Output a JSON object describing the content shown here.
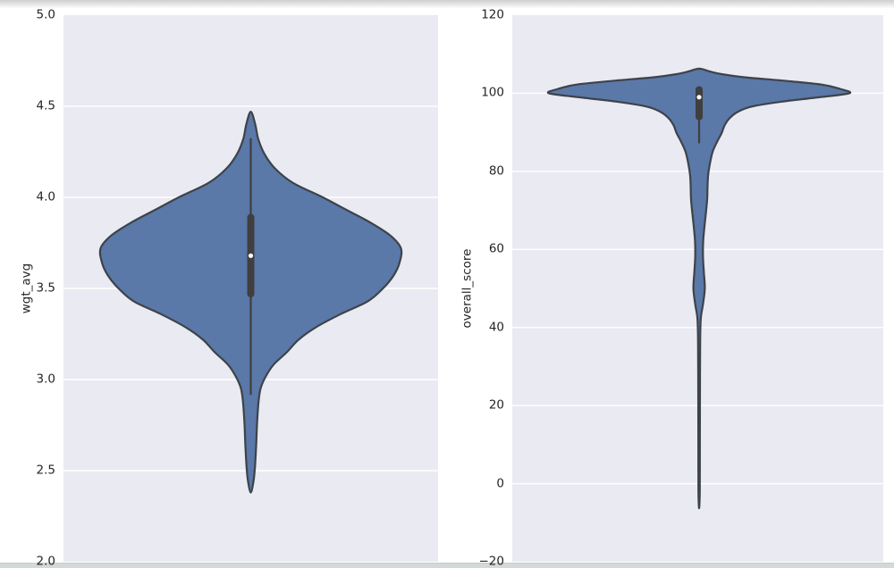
{
  "page": {
    "background": "#ffffff",
    "top_strip_color": "#cfcfcf",
    "bottom_strip_color": "#d3d8d8"
  },
  "chart_data": [
    {
      "type": "violin",
      "orientation": "vertical",
      "title": "",
      "xlabel": "",
      "ylabel": "wgt_avg",
      "ylim": [
        2.0,
        5.0
      ],
      "yticks": [
        {
          "value": 5.0,
          "label": "5.0"
        },
        {
          "value": 4.5,
          "label": "4.5"
        },
        {
          "value": 4.0,
          "label": "4.0"
        },
        {
          "value": 3.5,
          "label": "3.5"
        },
        {
          "value": 3.0,
          "label": "3.0"
        },
        {
          "value": 2.5,
          "label": "2.5"
        },
        {
          "value": 2.0,
          "label": "2.0"
        }
      ],
      "grid": true,
      "panel_background": "#eaeaf2",
      "grid_color": "#ffffff",
      "violin": {
        "fill_color": "#5a78a8",
        "edge_color": "#3d4349",
        "kde_min": 2.38,
        "kde_max": 4.47,
        "peak_value": 3.72,
        "density_profile": [
          [
            4.47,
            0
          ],
          [
            4.4,
            0.03
          ],
          [
            4.32,
            0.05
          ],
          [
            4.24,
            0.09
          ],
          [
            4.16,
            0.16
          ],
          [
            4.08,
            0.28
          ],
          [
            4.0,
            0.48
          ],
          [
            3.93,
            0.64
          ],
          [
            3.86,
            0.8
          ],
          [
            3.79,
            0.93
          ],
          [
            3.72,
            1.0
          ],
          [
            3.64,
            0.99
          ],
          [
            3.57,
            0.95
          ],
          [
            3.5,
            0.88
          ],
          [
            3.43,
            0.78
          ],
          [
            3.36,
            0.6
          ],
          [
            3.29,
            0.44
          ],
          [
            3.22,
            0.32
          ],
          [
            3.15,
            0.24
          ],
          [
            3.08,
            0.15
          ],
          [
            3.01,
            0.095
          ],
          [
            2.95,
            0.065
          ],
          [
            2.88,
            0.052
          ],
          [
            2.76,
            0.042
          ],
          [
            2.64,
            0.036
          ],
          [
            2.52,
            0.028
          ],
          [
            2.44,
            0.018
          ],
          [
            2.38,
            0
          ]
        ]
      },
      "box": {
        "whisker_low": 2.92,
        "q1": 3.47,
        "median": 3.68,
        "q3": 3.89,
        "whisker_high": 4.32,
        "box_color": "#3f3f3f",
        "median_dot_color": "#ffffff"
      }
    },
    {
      "type": "violin",
      "orientation": "vertical",
      "title": "",
      "xlabel": "",
      "ylabel": "overall_score",
      "ylim": [
        -20,
        120
      ],
      "yticks": [
        {
          "value": 120,
          "label": "120"
        },
        {
          "value": 100,
          "label": "100"
        },
        {
          "value": 80,
          "label": "80"
        },
        {
          "value": 60,
          "label": "60"
        },
        {
          "value": 40,
          "label": "40"
        },
        {
          "value": 20,
          "label": "20"
        },
        {
          "value": 0,
          "label": "0"
        },
        {
          "value": -20,
          "label": "−20"
        }
      ],
      "grid": true,
      "panel_background": "#eaeaf2",
      "grid_color": "#ffffff",
      "violin": {
        "fill_color": "#5a78a8",
        "edge_color": "#3d4349",
        "kde_min": -6.3,
        "kde_max": 106.3,
        "peak_value": 100.0,
        "density_profile": [
          [
            106.3,
            0
          ],
          [
            105.6,
            0.07
          ],
          [
            104.9,
            0.15
          ],
          [
            104.1,
            0.3
          ],
          [
            103.2,
            0.57
          ],
          [
            102.2,
            0.82
          ],
          [
            101.1,
            0.94
          ],
          [
            100.0,
            1.0
          ],
          [
            98.9,
            0.78
          ],
          [
            97.8,
            0.54
          ],
          [
            96.6,
            0.35
          ],
          [
            95.3,
            0.26
          ],
          [
            93.7,
            0.205
          ],
          [
            91.8,
            0.17
          ],
          [
            89.8,
            0.15
          ],
          [
            87.6,
            0.12
          ],
          [
            85.0,
            0.09
          ],
          [
            82.0,
            0.072
          ],
          [
            79.0,
            0.06
          ],
          [
            76.0,
            0.056
          ],
          [
            73.0,
            0.054
          ],
          [
            70.0,
            0.047
          ],
          [
            66.0,
            0.036
          ],
          [
            62.0,
            0.027
          ],
          [
            58.0,
            0.026
          ],
          [
            54.0,
            0.032
          ],
          [
            50.0,
            0.038
          ],
          [
            46.0,
            0.026
          ],
          [
            43.0,
            0.013
          ],
          [
            40.5,
            0.009
          ],
          [
            36.0,
            0.007
          ],
          [
            28.0,
            0.006
          ],
          [
            18.0,
            0.0055
          ],
          [
            8.0,
            0.005
          ],
          [
            -2.0,
            0.0045
          ],
          [
            -6.3,
            0
          ]
        ]
      },
      "box": {
        "whisker_low": 87.4,
        "q1": 94.0,
        "median": 99.0,
        "q3": 100.9,
        "whisker_high": 100.9,
        "box_color": "#3f3f3f",
        "median_dot_color": "#ffffff"
      }
    }
  ]
}
